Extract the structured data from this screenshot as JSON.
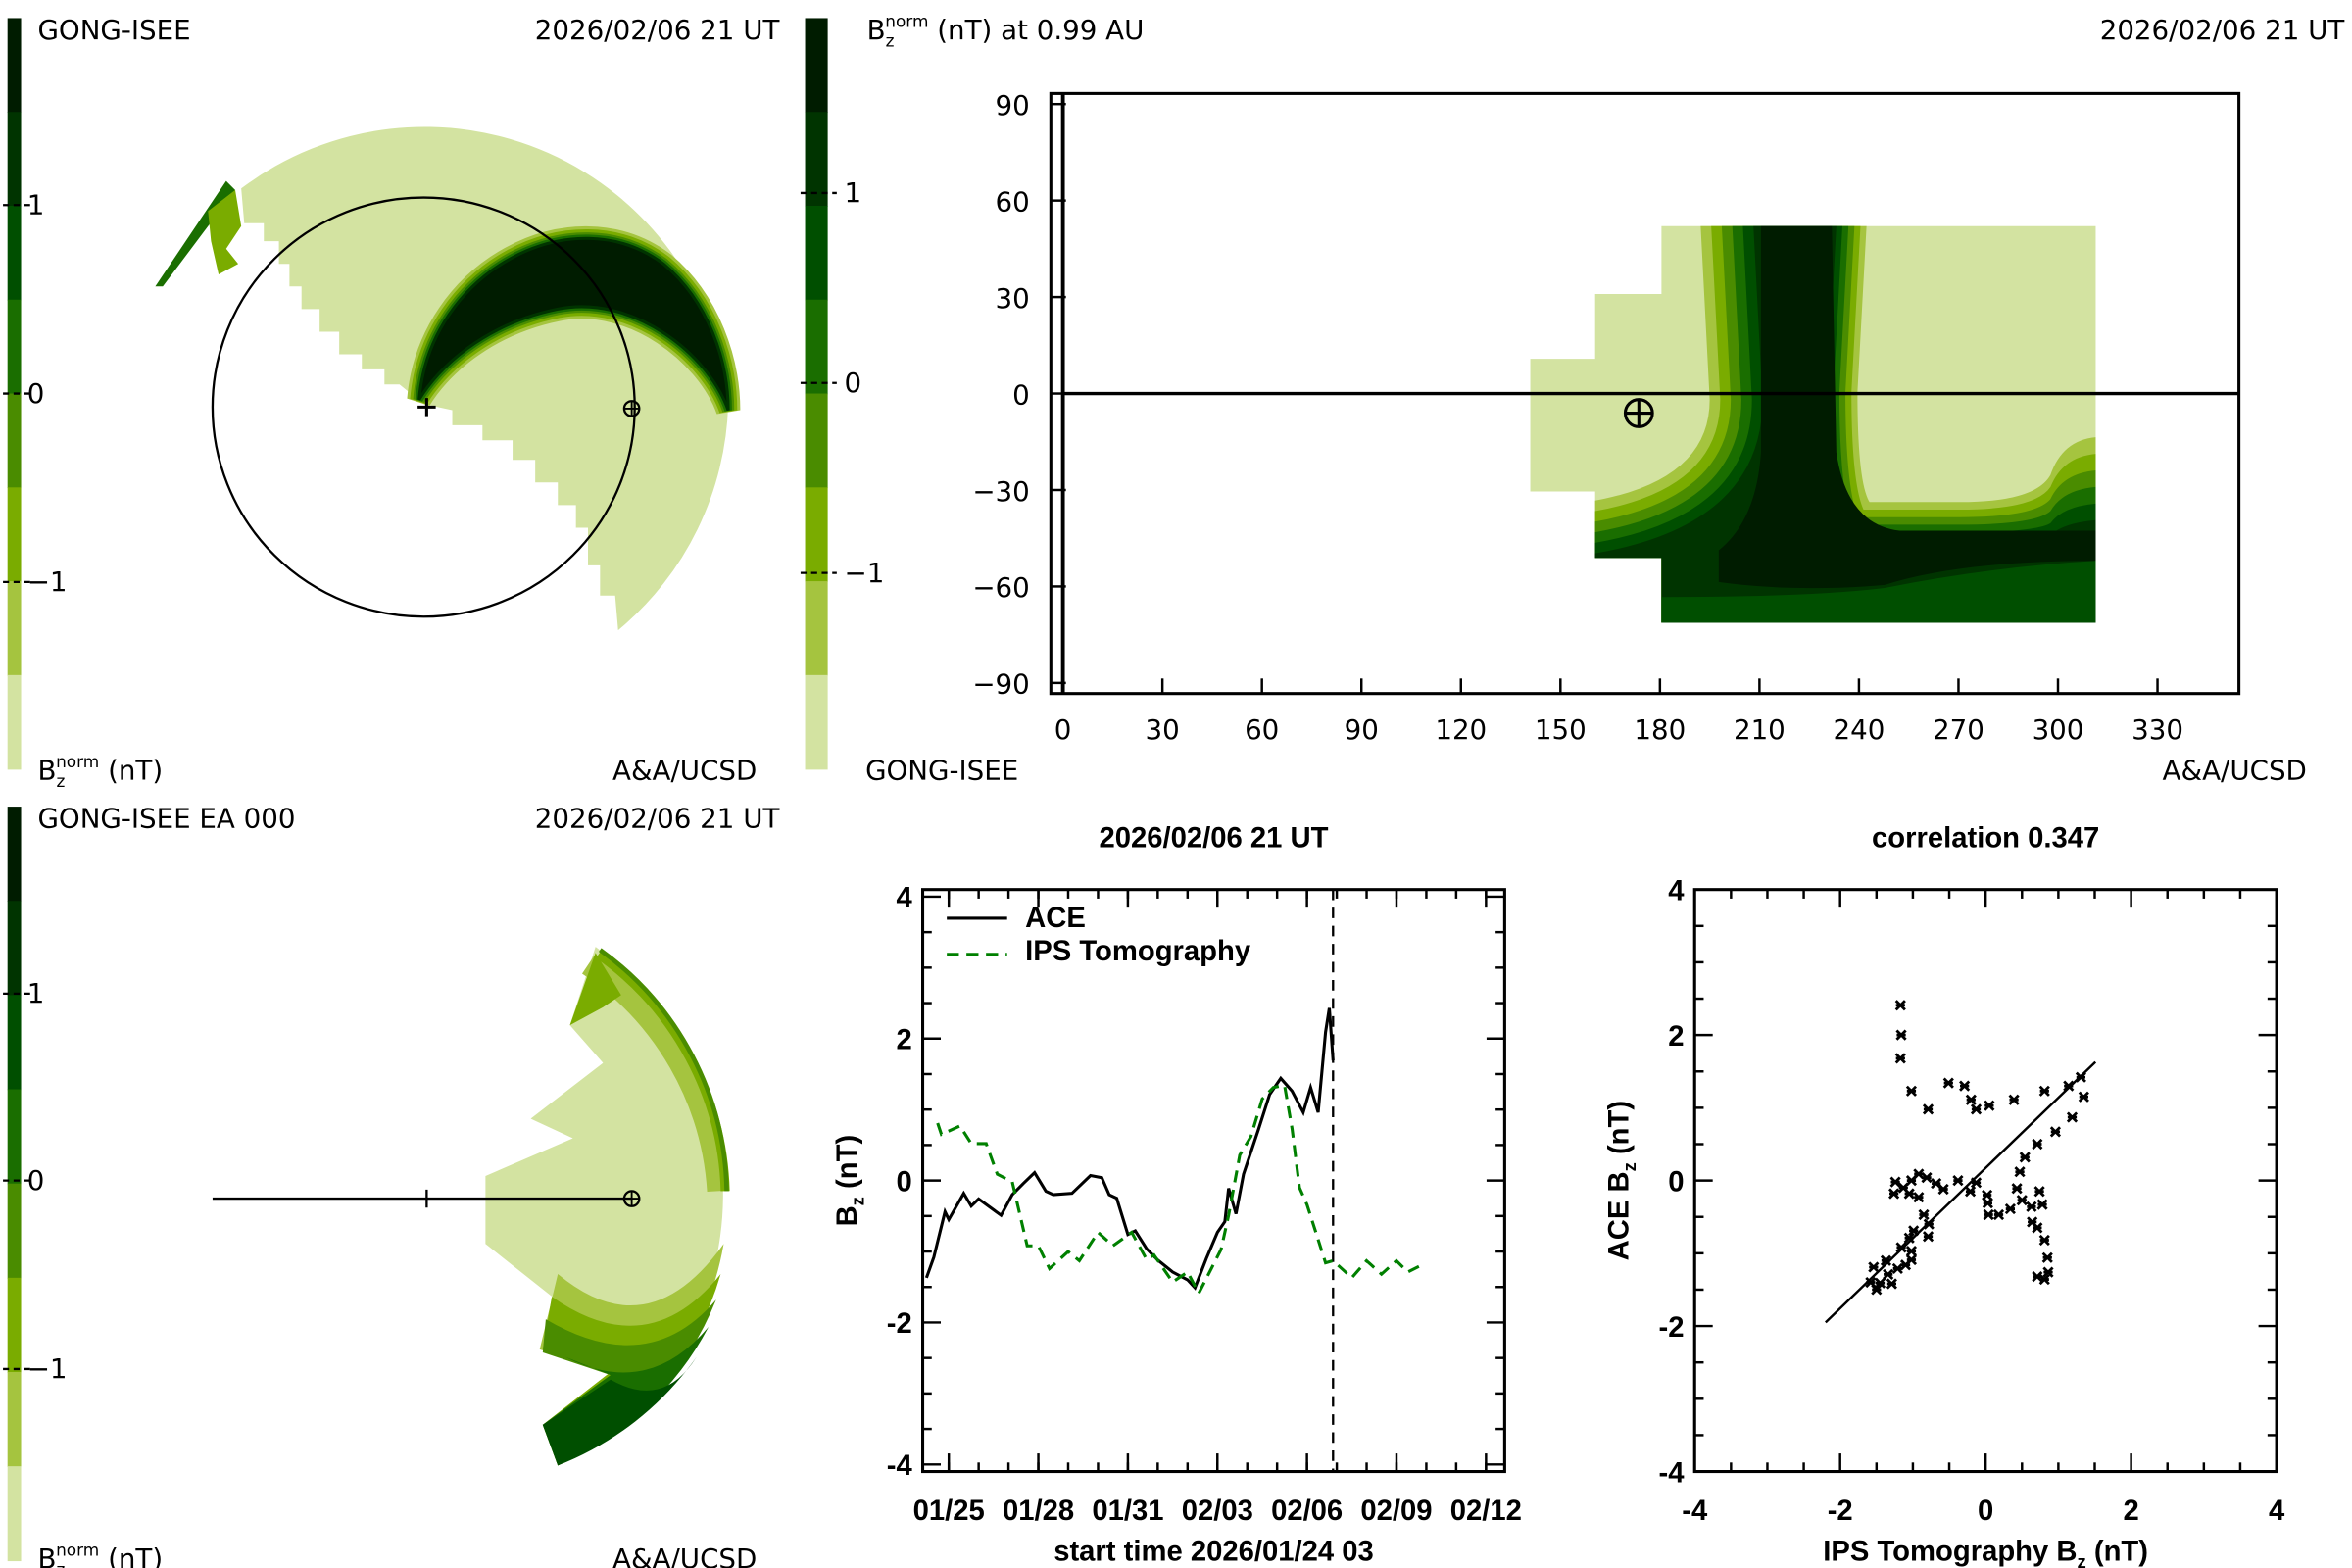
{
  "palette": [
    "#001c00",
    "#003400",
    "#004f00",
    "#1a6e00",
    "#4a8c00",
    "#7aac00",
    "#a5c43f",
    "#d3e3a1"
  ],
  "colorbar_ticks": [
    "1",
    "0",
    "−1"
  ],
  "panel_top_left": {
    "source": "GONG-ISEE",
    "date": "2026/02/06 21 UT",
    "unit_base": "B",
    "unit_sub": "z",
    "unit_sup": "norm",
    "unit_rest": " (nT)",
    "credit": "A&A/UCSD"
  },
  "panel_bottom_left": {
    "source": "GONG-ISEE EA 000",
    "date": "2026/02/06 21 UT",
    "unit_base": "B",
    "unit_sub": "z",
    "unit_sup": "norm",
    "unit_rest": " (nT)",
    "credit": "A&A/UCSD"
  },
  "panel_map": {
    "title_base": "B",
    "title_sub": "z",
    "title_sup": "norm",
    "title_rest": " (nT) at 0.99 AU",
    "date": "2026/02/06 21 UT",
    "source": "GONG-ISEE",
    "credit": "A&A/UCSD",
    "x_ticks": [
      "0",
      "30",
      "60",
      "90",
      "120",
      "150",
      "180",
      "210",
      "240",
      "270",
      "300",
      "330"
    ],
    "y_ticks": [
      "90",
      "60",
      "30",
      "0",
      "−30",
      "−60",
      "−90"
    ]
  },
  "chart_data": [
    {
      "type": "line",
      "title": "2026/02/06 21 UT",
      "xlabel": "start time 2026/01/24 03",
      "ylabel_base": "B",
      "ylabel_sub": "z",
      "ylabel_rest": " (nT)",
      "xlim": [
        "2026-01-24T03",
        "2026-02-12T15"
      ],
      "ylim": [
        -4.1,
        4.1
      ],
      "x_ticks": [
        {
          "date": "2026-01-25T00",
          "label": "01/25"
        },
        {
          "date": "2026-01-28T00",
          "label": "01/28"
        },
        {
          "date": "2026-01-31T00",
          "label": "01/31"
        },
        {
          "date": "2026-02-03T00",
          "label": "02/03"
        },
        {
          "date": "2026-02-06T00",
          "label": "02/06"
        },
        {
          "date": "2026-02-09T00",
          "label": "02/09"
        },
        {
          "date": "2026-02-12T00",
          "label": "02/12"
        }
      ],
      "y_ticks": [
        "-4",
        "-2",
        "0",
        "2",
        "4"
      ],
      "marker_time": "2026-02-06T21",
      "legend": "top-left",
      "series": [
        {
          "name": "ACE",
          "color": "#000000",
          "dash": "solid",
          "points": [
            [
              "2026-01-24T06",
              -1.37
            ],
            [
              "2026-01-24T12",
              -1.08
            ],
            [
              "2026-01-24T21",
              -0.44
            ],
            [
              "2026-01-25T00",
              -0.55
            ],
            [
              "2026-01-25T12",
              -0.18
            ],
            [
              "2026-01-25T18",
              -0.36
            ],
            [
              "2026-01-26T00",
              -0.26
            ],
            [
              "2026-01-26T18",
              -0.49
            ],
            [
              "2026-01-27T03",
              -0.2
            ],
            [
              "2026-01-27T12",
              -0.04
            ],
            [
              "2026-01-27T21",
              0.11
            ],
            [
              "2026-01-28T06",
              -0.15
            ],
            [
              "2026-01-28T12",
              -0.2
            ],
            [
              "2026-01-29T03",
              -0.18
            ],
            [
              "2026-01-29T18",
              0.07
            ],
            [
              "2026-01-30T03",
              0.04
            ],
            [
              "2026-01-30T09",
              -0.2
            ],
            [
              "2026-01-30T15",
              -0.25
            ],
            [
              "2026-01-31T00",
              -0.76
            ],
            [
              "2026-01-31T06",
              -0.71
            ],
            [
              "2026-01-31T15",
              -0.96
            ],
            [
              "2026-02-01T00",
              -1.12
            ],
            [
              "2026-02-01T12",
              -1.29
            ],
            [
              "2026-02-02T00",
              -1.4
            ],
            [
              "2026-02-02T06",
              -1.51
            ],
            [
              "2026-02-02T15",
              -1.1
            ],
            [
              "2026-02-03T00",
              -0.73
            ],
            [
              "2026-02-03T06",
              -0.58
            ],
            [
              "2026-02-03T09",
              -0.11
            ],
            [
              "2026-02-03T15",
              -0.47
            ],
            [
              "2026-02-03T21",
              0.09
            ],
            [
              "2026-02-04T09",
              0.72
            ],
            [
              "2026-02-04T18",
              1.21
            ],
            [
              "2026-02-05T03",
              1.44
            ],
            [
              "2026-02-05T12",
              1.26
            ],
            [
              "2026-02-05T21",
              0.96
            ],
            [
              "2026-02-06T03",
              1.31
            ],
            [
              "2026-02-06T09",
              0.96
            ],
            [
              "2026-02-06T15",
              2.09
            ],
            [
              "2026-02-06T18",
              2.43
            ],
            [
              "2026-02-06T21",
              1.69
            ]
          ]
        },
        {
          "name": "IPS Tomography",
          "color": "#008000",
          "dash": "dashed",
          "points": [
            [
              "2026-01-24T15",
              0.81
            ],
            [
              "2026-01-24T18",
              0.65
            ],
            [
              "2026-01-25T09",
              0.77
            ],
            [
              "2026-01-25T18",
              0.52
            ],
            [
              "2026-01-26T06",
              0.52
            ],
            [
              "2026-01-26T15",
              0.09
            ],
            [
              "2026-01-27T03",
              -0.02
            ],
            [
              "2026-01-27T15",
              -0.92
            ],
            [
              "2026-01-28T00",
              -0.92
            ],
            [
              "2026-01-28T09",
              -1.24
            ],
            [
              "2026-01-29T00",
              -1.0
            ],
            [
              "2026-01-29T09",
              -1.13
            ],
            [
              "2026-01-30T00",
              -0.73
            ],
            [
              "2026-01-30T12",
              -0.92
            ],
            [
              "2026-01-31T03",
              -0.73
            ],
            [
              "2026-01-31T15",
              -1.11
            ],
            [
              "2026-01-31T21",
              -1.05
            ],
            [
              "2026-02-01T12",
              -1.43
            ],
            [
              "2026-02-02T00",
              -1.29
            ],
            [
              "2026-02-02T09",
              -1.59
            ],
            [
              "2026-02-03T03",
              -0.97
            ],
            [
              "2026-02-03T09",
              -0.49
            ],
            [
              "2026-02-03T18",
              0.36
            ],
            [
              "2026-02-04T03",
              0.62
            ],
            [
              "2026-02-04T12",
              1.15
            ],
            [
              "2026-02-04T21",
              1.31
            ],
            [
              "2026-02-05T06",
              1.34
            ],
            [
              "2026-02-05T12",
              0.73
            ],
            [
              "2026-02-05T18",
              -0.1
            ],
            [
              "2026-02-06T00",
              -0.34
            ],
            [
              "2026-02-06T15",
              -1.16
            ],
            [
              "2026-02-06T21",
              -1.13
            ],
            [
              "2026-02-07T12",
              -1.37
            ],
            [
              "2026-02-08T00",
              -1.13
            ],
            [
              "2026-02-08T12",
              -1.32
            ],
            [
              "2026-02-09T00",
              -1.13
            ],
            [
              "2026-02-09T09",
              -1.29
            ],
            [
              "2026-02-09T18",
              -1.21
            ]
          ]
        }
      ]
    },
    {
      "type": "scatter",
      "title": "correlation 0.347",
      "xlabel_base": "IPS Tomography B",
      "xlabel_sub": "z",
      "xlabel_rest": " (nT)",
      "ylabel_base": "ACE B",
      "ylabel_sub": "z",
      "ylabel_rest": " (nT)",
      "xlim": [
        -4,
        4
      ],
      "ylim": [
        -4,
        4
      ],
      "x_ticks": [
        "-4",
        "-2",
        "0",
        "2",
        "4"
      ],
      "y_ticks": [
        "-4",
        "-2",
        "0",
        "2",
        "4"
      ],
      "fit_line": [
        [
          -2.2,
          -1.95
        ],
        [
          1.51,
          1.63
        ]
      ],
      "points": [
        [
          -1.17,
          2.41
        ],
        [
          -1.16,
          2.0
        ],
        [
          -1.17,
          1.68
        ],
        [
          -1.02,
          1.23
        ],
        [
          -0.79,
          0.98
        ],
        [
          -0.51,
          1.34
        ],
        [
          -0.29,
          1.3
        ],
        [
          -0.2,
          1.11
        ],
        [
          -0.13,
          0.98
        ],
        [
          0.05,
          1.03
        ],
        [
          0.39,
          1.11
        ],
        [
          0.81,
          1.23
        ],
        [
          1.14,
          1.3
        ],
        [
          1.31,
          1.42
        ],
        [
          1.35,
          1.15
        ],
        [
          1.19,
          0.87
        ],
        [
          0.96,
          0.67
        ],
        [
          0.71,
          0.5
        ],
        [
          0.54,
          0.32
        ],
        [
          0.47,
          0.12
        ],
        [
          0.43,
          -0.11
        ],
        [
          0.5,
          -0.27
        ],
        [
          0.74,
          -0.15
        ],
        [
          0.78,
          -0.33
        ],
        [
          0.63,
          -0.36
        ],
        [
          0.64,
          -0.57
        ],
        [
          0.71,
          -0.65
        ],
        [
          0.81,
          -0.82
        ],
        [
          0.85,
          -1.06
        ],
        [
          0.86,
          -1.26
        ],
        [
          0.71,
          -1.32
        ],
        [
          0.81,
          -1.36
        ],
        [
          0.34,
          -0.39
        ],
        [
          0.18,
          -0.47
        ],
        [
          0.04,
          -0.47
        ],
        [
          0.03,
          -0.31
        ],
        [
          0.02,
          -0.2
        ],
        [
          -0.13,
          -0.03
        ],
        [
          -0.21,
          -0.15
        ],
        [
          -0.38,
          0.0
        ],
        [
          -0.58,
          -0.12
        ],
        [
          -0.68,
          -0.04
        ],
        [
          -0.81,
          0.04
        ],
        [
          -0.92,
          0.09
        ],
        [
          -1.02,
          0.0
        ],
        [
          -1.13,
          -0.1
        ],
        [
          -1.24,
          -0.02
        ],
        [
          -1.26,
          -0.18
        ],
        [
          -1.05,
          -0.18
        ],
        [
          -0.92,
          -0.23
        ],
        [
          -0.85,
          -0.47
        ],
        [
          -0.78,
          -0.6
        ],
        [
          -0.79,
          -0.77
        ],
        [
          -0.99,
          -0.69
        ],
        [
          -1.05,
          -0.79
        ],
        [
          -1.16,
          -0.92
        ],
        [
          -1.02,
          -0.97
        ],
        [
          -1.02,
          -1.09
        ],
        [
          -1.1,
          -1.16
        ],
        [
          -1.21,
          -1.21
        ],
        [
          -1.37,
          -1.1
        ],
        [
          -1.54,
          -1.19
        ],
        [
          -1.34,
          -1.29
        ],
        [
          -1.29,
          -1.42
        ],
        [
          -1.5,
          -1.5
        ],
        [
          -1.45,
          -1.41
        ],
        [
          -1.58,
          -1.4
        ]
      ]
    }
  ]
}
